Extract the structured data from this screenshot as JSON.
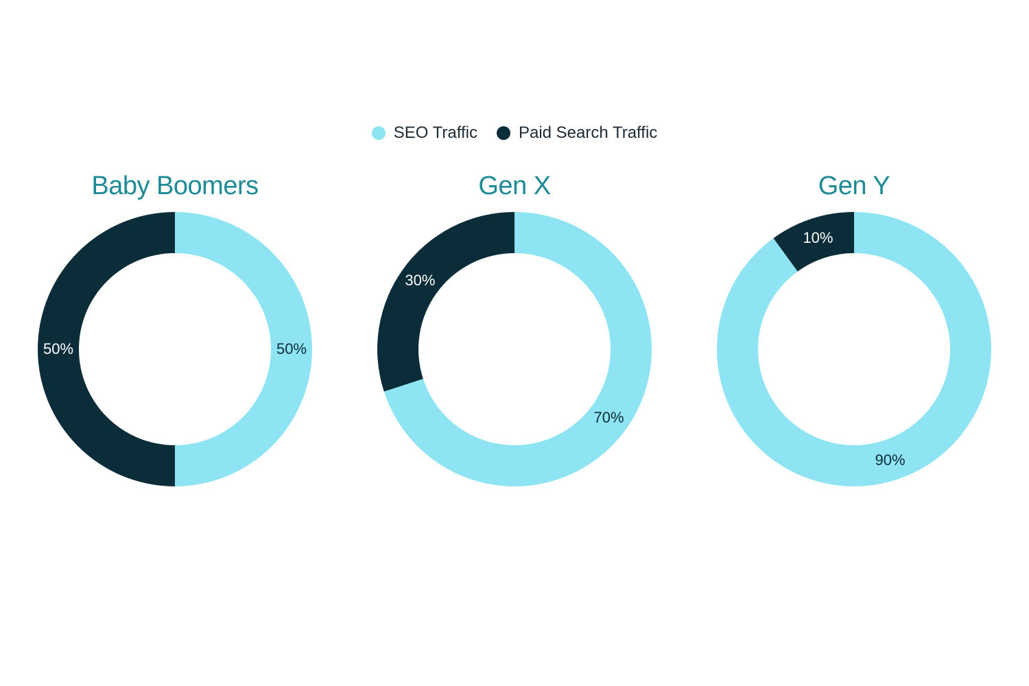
{
  "background_color": "#ffffff",
  "legend": {
    "items": [
      {
        "label": "SEO Traffic",
        "color": "#8ee4f2"
      },
      {
        "label": "Paid Search Traffic",
        "color": "#0b2d3a"
      }
    ],
    "label_color": "#1d2b36",
    "label_fontsize": 24,
    "dot_radius": 10
  },
  "title_color": "#1e8a96",
  "title_fontsize": 38,
  "donut": {
    "outer_radius": 200,
    "inner_radius": 140,
    "start_angle_deg": 0,
    "label_radius": 170,
    "label_fontsize": 22
  },
  "charts": [
    {
      "title": "Baby Boomers",
      "slices": [
        {
          "label": "50%",
          "value": 50,
          "color": "#8ee4f2",
          "label_color": "#0b2d3a"
        },
        {
          "label": "50%",
          "value": 50,
          "color": "#0b2d3a",
          "label_color": "#ffffff"
        }
      ]
    },
    {
      "title": "Gen X",
      "slices": [
        {
          "label": "70%",
          "value": 70,
          "color": "#8ee4f2",
          "label_color": "#0b2d3a"
        },
        {
          "label": "30%",
          "value": 30,
          "color": "#0b2d3a",
          "label_color": "#ffffff"
        }
      ]
    },
    {
      "title": "Gen Y",
      "slices": [
        {
          "label": "90%",
          "value": 90,
          "color": "#8ee4f2",
          "label_color": "#0b2d3a"
        },
        {
          "label": "10%",
          "value": 10,
          "color": "#0b2d3a",
          "label_color": "#ffffff"
        }
      ]
    }
  ]
}
